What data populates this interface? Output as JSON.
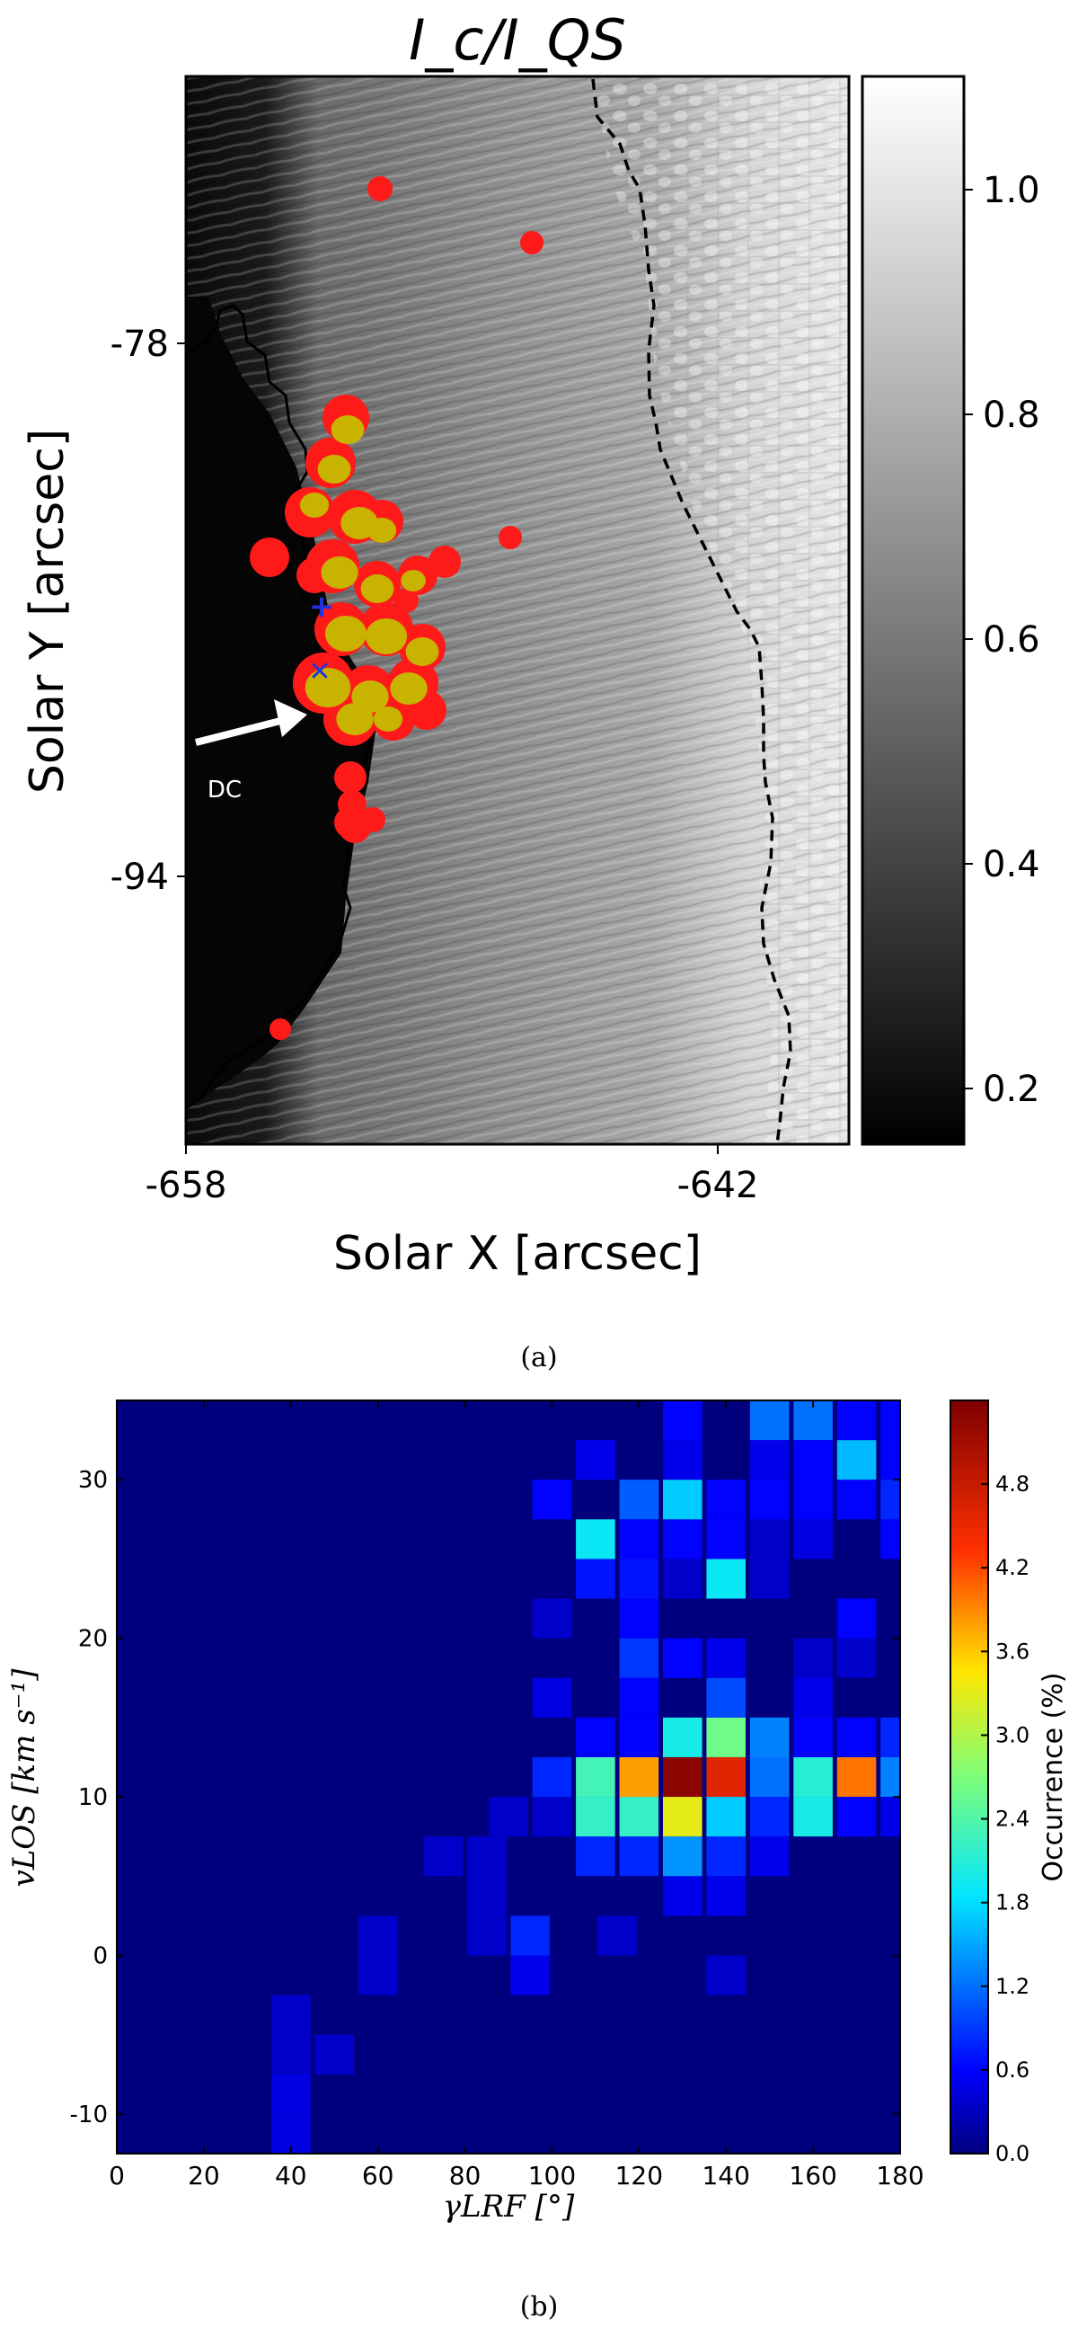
{
  "panel_a": {
    "title": "I_c/I_QS",
    "xlabel": "Solar X [arcsec]",
    "ylabel": "Solar Y [arcsec]",
    "xticks": [
      "-658",
      "-642"
    ],
    "yticks": [
      "-78",
      "-94"
    ],
    "colorbar_ticks": [
      "1.0",
      "0.8",
      "0.6",
      "0.4",
      "0.2"
    ],
    "annotation": "DC",
    "caption": "(a)",
    "colors": {
      "red_patch": "#ff1a1a",
      "yellow_patch": "#c8b400",
      "marker": "#2233dd"
    }
  },
  "panel_b": {
    "xlabel": "γLRF [°]",
    "ylabel": "vLOS [km s⁻¹]",
    "colorbar_label": "Occurrence (%)",
    "xticks": [
      "0",
      "20",
      "40",
      "60",
      "80",
      "100",
      "120",
      "140",
      "160",
      "180"
    ],
    "yticks": [
      "30",
      "20",
      "10",
      "0",
      "-10"
    ],
    "colorbar_ticks": [
      "4.8",
      "4.2",
      "3.6",
      "3.0",
      "2.4",
      "1.8",
      "1.2",
      "0.6",
      "0.0"
    ],
    "caption": "(b)"
  },
  "chart_data": [
    {
      "type": "image",
      "title": "I_c/I_QS",
      "xlabel": "Solar X [arcsec]",
      "ylabel": "Solar Y [arcsec]",
      "xlim": [
        -658,
        -638
      ],
      "ylim": [
        -102,
        -70
      ],
      "clim": [
        0.15,
        1.1
      ],
      "colormap": "gray"
    },
    {
      "type": "heatmap",
      "xlabel": "γLRF [°]",
      "ylabel": "vLOS [km s⁻¹]",
      "colorbar_label": "Occurrence (%)",
      "xlim": [
        0,
        180
      ],
      "ylim": [
        -12.5,
        35
      ],
      "clim": [
        0,
        5.4
      ],
      "bin_width_x": 9,
      "bin_height_y": 2.5,
      "colormap": "jet",
      "cells": [
        [
          40,
          -11.25,
          0.45
        ],
        [
          40,
          -8.75,
          0.45
        ],
        [
          40,
          -6.25,
          0.35
        ],
        [
          50,
          -6.25,
          0.35
        ],
        [
          40,
          -3.75,
          0.35
        ],
        [
          60,
          -1.25,
          0.35
        ],
        [
          60,
          1.25,
          0.35
        ],
        [
          95,
          -1.25,
          0.5
        ],
        [
          95,
          1.25,
          0.8
        ],
        [
          85,
          1.25,
          0.35
        ],
        [
          85,
          3.75,
          0.35
        ],
        [
          75,
          6.25,
          0.35
        ],
        [
          85,
          6.25,
          0.35
        ],
        [
          115,
          1.25,
          0.35
        ],
        [
          130,
          3.75,
          0.5
        ],
        [
          140,
          3.75,
          0.5
        ],
        [
          140,
          -1.25,
          0.35
        ],
        [
          110,
          6.25,
          0.8
        ],
        [
          120,
          6.25,
          0.8
        ],
        [
          130,
          6.25,
          1.4
        ],
        [
          140,
          6.25,
          0.8
        ],
        [
          150,
          6.25,
          0.5
        ],
        [
          90,
          8.75,
          0.35
        ],
        [
          100,
          8.75,
          0.35
        ],
        [
          110,
          8.75,
          2.2
        ],
        [
          120,
          8.75,
          2.2
        ],
        [
          130,
          8.75,
          3.3
        ],
        [
          140,
          8.75,
          1.7
        ],
        [
          150,
          8.75,
          0.8
        ],
        [
          160,
          8.75,
          2.0
        ],
        [
          170,
          8.75,
          0.6
        ],
        [
          180,
          8.75,
          0.5
        ],
        [
          100,
          11.25,
          0.8
        ],
        [
          110,
          11.25,
          2.3
        ],
        [
          120,
          11.25,
          3.8
        ],
        [
          130,
          11.25,
          5.3
        ],
        [
          140,
          11.25,
          4.6
        ],
        [
          150,
          11.25,
          1.2
        ],
        [
          160,
          11.25,
          2.1
        ],
        [
          170,
          11.25,
          4.0
        ],
        [
          180,
          11.25,
          1.3
        ],
        [
          110,
          13.75,
          0.6
        ],
        [
          120,
          13.75,
          0.6
        ],
        [
          130,
          13.75,
          2.0
        ],
        [
          140,
          13.75,
          2.6
        ],
        [
          150,
          13.75,
          1.3
        ],
        [
          160,
          13.75,
          0.6
        ],
        [
          170,
          13.75,
          0.6
        ],
        [
          180,
          13.75,
          0.8
        ],
        [
          100,
          16.25,
          0.45
        ],
        [
          120,
          16.25,
          0.6
        ],
        [
          140,
          16.25,
          1.0
        ],
        [
          160,
          16.25,
          0.5
        ],
        [
          120,
          18.75,
          0.9
        ],
        [
          130,
          18.75,
          0.6
        ],
        [
          140,
          18.75,
          0.5
        ],
        [
          160,
          18.75,
          0.35
        ],
        [
          170,
          18.75,
          0.35
        ],
        [
          100,
          21.25,
          0.35
        ],
        [
          120,
          21.25,
          0.6
        ],
        [
          170,
          21.25,
          0.6
        ],
        [
          110,
          23.75,
          0.7
        ],
        [
          120,
          23.75,
          0.7
        ],
        [
          130,
          23.75,
          0.35
        ],
        [
          140,
          23.75,
          1.9
        ],
        [
          150,
          23.75,
          0.35
        ],
        [
          110,
          26.25,
          1.9
        ],
        [
          120,
          26.25,
          0.6
        ],
        [
          130,
          26.25,
          0.6
        ],
        [
          140,
          26.25,
          0.6
        ],
        [
          150,
          26.25,
          0.35
        ],
        [
          160,
          26.25,
          0.45
        ],
        [
          180,
          26.25,
          0.6
        ],
        [
          100,
          28.75,
          0.6
        ],
        [
          120,
          28.75,
          1.1
        ],
        [
          130,
          28.75,
          1.7
        ],
        [
          140,
          28.75,
          0.6
        ],
        [
          150,
          28.75,
          0.6
        ],
        [
          160,
          28.75,
          0.6
        ],
        [
          170,
          28.75,
          0.6
        ],
        [
          180,
          28.75,
          0.8
        ],
        [
          110,
          31.25,
          0.5
        ],
        [
          130,
          31.25,
          0.5
        ],
        [
          150,
          31.25,
          0.5
        ],
        [
          160,
          31.25,
          0.6
        ],
        [
          170,
          31.25,
          1.6
        ],
        [
          180,
          31.25,
          0.6
        ],
        [
          130,
          33.75,
          0.6
        ],
        [
          150,
          33.75,
          1.2
        ],
        [
          160,
          33.75,
          1.2
        ],
        [
          170,
          33.75,
          0.6
        ],
        [
          180,
          33.75,
          0.6
        ]
      ]
    }
  ]
}
